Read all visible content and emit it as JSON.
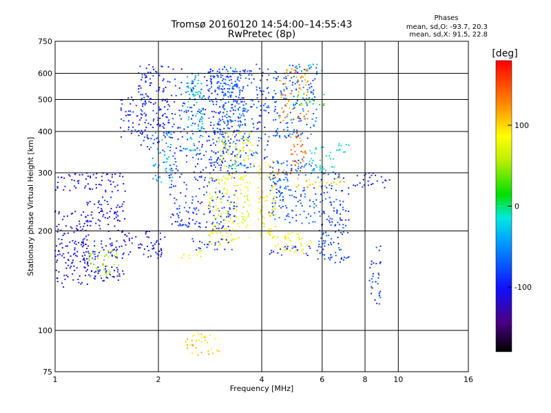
{
  "chart_data": {
    "type": "scatter",
    "title": "Tromsø 20160120 14:54:00–14:55:43",
    "subtitle": "RwPretec (8p)",
    "xlabel": "Frequency [MHz]",
    "ylabel": "Stationary phase Virtual Height [km]",
    "x_scale": "log",
    "y_scale": "log",
    "xlim": [
      1,
      16
    ],
    "ylim": [
      75,
      750
    ],
    "x_ticks": [
      1,
      2,
      4,
      6,
      8,
      10,
      16
    ],
    "y_ticks": [
      75,
      100,
      200,
      300,
      400,
      500,
      600,
      750
    ],
    "x_tick_labels": [
      "1",
      "2",
      "4",
      "6",
      "8",
      "10",
      "16"
    ],
    "y_tick_labels": [
      "75",
      "100",
      "200",
      "300",
      "400",
      "500",
      "600",
      "750"
    ],
    "grid": true,
    "stats": {
      "heading": "Phases",
      "o_line": "mean, sd,O: -93.7, 20.3",
      "x_line": "mean, sd,X:  91.5, 22.8"
    },
    "colorbar": {
      "label": "[deg]",
      "range": [
        -180,
        180
      ],
      "ticks": [
        100,
        0,
        -100
      ],
      "tick_labels": [
        "100",
        "0",
        "-100"
      ]
    },
    "clusters": [
      {
        "f": [
          1.75,
          2.15
        ],
        "h": [
          350,
          640
        ],
        "phase": -95
      },
      {
        "f": [
          1.55,
          1.85
        ],
        "h": [
          380,
          520
        ],
        "phase": -90
      },
      {
        "f": [
          1.9,
          2.2
        ],
        "h": [
          280,
          400
        ],
        "phase": -45
      },
      {
        "f": [
          1.0,
          1.25
        ],
        "h": [
          135,
          230
        ],
        "phase": -105
      },
      {
        "f": [
          1.2,
          1.6
        ],
        "h": [
          140,
          300
        ],
        "phase": -105
      },
      {
        "f": [
          1.25,
          1.55
        ],
        "h": [
          145,
          175
        ],
        "phase": 45
      },
      {
        "f": [
          1.6,
          2.1
        ],
        "h": [
          165,
          200
        ],
        "phase": -100
      },
      {
        "f": [
          1.0,
          1.2
        ],
        "h": [
          265,
          300
        ],
        "phase": -105
      },
      {
        "f": [
          2.15,
          3.4
        ],
        "h": [
          200,
          620
        ],
        "phase": -85
      },
      {
        "f": [
          2.4,
          2.7
        ],
        "h": [
          350,
          600
        ],
        "phase": -20
      },
      {
        "f": [
          2.8,
          3.8
        ],
        "h": [
          300,
          620
        ],
        "phase": -80
      },
      {
        "f": [
          3.1,
          3.6
        ],
        "h": [
          420,
          630
        ],
        "phase": -60
      },
      {
        "f": [
          2.8,
          3.7
        ],
        "h": [
          180,
          300
        ],
        "phase": 75
      },
      {
        "f": [
          2.5,
          3.3
        ],
        "h": [
          175,
          190
        ],
        "phase": -85
      },
      {
        "f": [
          2.3,
          2.7
        ],
        "h": [
          165,
          175
        ],
        "phase": 80
      },
      {
        "f": [
          3.0,
          3.8
        ],
        "h": [
          310,
          400
        ],
        "phase": 65
      },
      {
        "f": [
          3.2,
          3.8
        ],
        "h": [
          305,
          320
        ],
        "phase": -15
      },
      {
        "f": [
          3.9,
          4.4
        ],
        "h": [
          185,
          330
        ],
        "phase": 90
      },
      {
        "f": [
          3.85,
          4.2
        ],
        "h": [
          330,
          640
        ],
        "phase": -80
      },
      {
        "f": [
          4.3,
          5.8
        ],
        "h": [
          380,
          640
        ],
        "phase": -70
      },
      {
        "f": [
          4.5,
          5.5
        ],
        "h": [
          430,
          620
        ],
        "phase": 125
      },
      {
        "f": [
          4.8,
          5.4
        ],
        "h": [
          300,
          400
        ],
        "phase": 140
      },
      {
        "f": [
          4.2,
          5.0
        ],
        "h": [
          285,
          305
        ],
        "phase": 135
      },
      {
        "f": [
          5.0,
          7.0
        ],
        "h": [
          270,
          290
        ],
        "phase": 105
      },
      {
        "f": [
          4.2,
          5.8
        ],
        "h": [
          210,
          330
        ],
        "phase": -70
      },
      {
        "f": [
          4.2,
          5.6
        ],
        "h": [
          170,
          200
        ],
        "phase": 85
      },
      {
        "f": [
          4.2,
          5.6
        ],
        "h": [
          168,
          180
        ],
        "phase": -90
      },
      {
        "f": [
          5.5,
          6.5
        ],
        "h": [
          300,
          360
        ],
        "phase": -15
      },
      {
        "f": [
          5.8,
          7.2
        ],
        "h": [
          160,
          300
        ],
        "phase": -80
      },
      {
        "f": [
          6.5,
          7.5
        ],
        "h": [
          345,
          370
        ],
        "phase": -20
      },
      {
        "f": [
          7.4,
          9.5
        ],
        "h": [
          270,
          300
        ],
        "phase": -100
      },
      {
        "f": [
          8.2,
          8.9
        ],
        "h": [
          120,
          180
        ],
        "phase": -85
      },
      {
        "f": [
          2.4,
          3.0
        ],
        "h": [
          84,
          98
        ],
        "phase": 100
      },
      {
        "f": [
          5.2,
          6.0
        ],
        "h": [
          600,
          640
        ],
        "phase": -30
      },
      {
        "f": [
          5.0,
          6.2
        ],
        "h": [
          480,
          520
        ],
        "phase": 10
      }
    ]
  }
}
